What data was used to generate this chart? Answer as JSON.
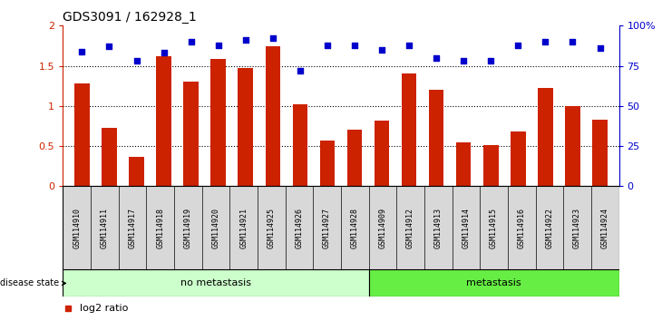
{
  "title": "GDS3091 / 162928_1",
  "samples": [
    "GSM114910",
    "GSM114911",
    "GSM114917",
    "GSM114918",
    "GSM114919",
    "GSM114920",
    "GSM114921",
    "GSM114925",
    "GSM114926",
    "GSM114927",
    "GSM114928",
    "GSM114909",
    "GSM114912",
    "GSM114913",
    "GSM114914",
    "GSM114915",
    "GSM114916",
    "GSM114922",
    "GSM114923",
    "GSM114924"
  ],
  "log2_ratio": [
    1.28,
    0.73,
    0.37,
    1.62,
    1.3,
    1.59,
    1.47,
    1.74,
    1.02,
    0.57,
    0.7,
    0.82,
    1.4,
    1.2,
    0.55,
    0.51,
    0.68,
    1.22,
    1.0,
    0.83
  ],
  "percentile_rank": [
    84,
    87,
    78,
    83,
    90,
    88,
    91,
    92,
    72,
    88,
    88,
    85,
    88,
    80,
    78,
    78,
    88,
    90,
    90,
    86
  ],
  "no_metastasis_count": 11,
  "metastasis_count": 9,
  "bar_color": "#cc2200",
  "dot_color": "#0000cc",
  "no_meta_fill": "#ccffcc",
  "meta_fill": "#66ee44",
  "label_box_fill": "#d8d8d8",
  "ylim_left": [
    0,
    2.0
  ],
  "ylim_right": [
    0,
    100
  ],
  "yticks_left": [
    0,
    0.5,
    1.0,
    1.5,
    2.0
  ],
  "yticks_right": [
    0,
    25,
    50,
    75,
    100
  ],
  "ytick_labels_left": [
    "0",
    "0.5",
    "1",
    "1.5",
    "2"
  ],
  "ytick_labels_right": [
    "0",
    "25",
    "50",
    "75",
    "100%"
  ]
}
